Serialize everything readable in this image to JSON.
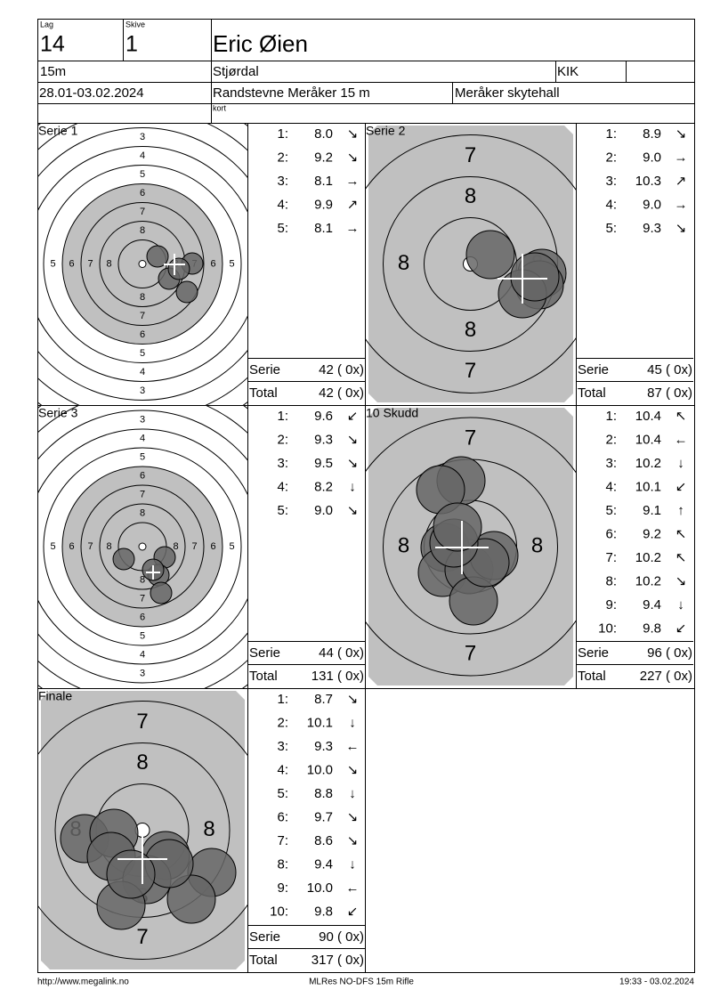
{
  "header": {
    "lag_label": "Lag",
    "lag": "14",
    "skive_label": "Skive",
    "skive": "1",
    "name": "Eric Øien",
    "distance": "15m",
    "club": "Stjørdal",
    "club_short": "KIK",
    "dates": "28.01-03.02.2024",
    "event": "Randstevne Meråker 15 m",
    "venue": "Meråker skytehall",
    "note": "kort"
  },
  "panels": [
    {
      "title": "Serie 1",
      "target": "full",
      "ring_labels": {
        "vertical": [
          3,
          4,
          5,
          6,
          7,
          8
        ],
        "horizontal": [
          5,
          6,
          7,
          8
        ]
      },
      "shots": [
        {
          "n": "1:",
          "value": "8.0",
          "arrow": "↘"
        },
        {
          "n": "2:",
          "value": "9.2",
          "arrow": "↘"
        },
        {
          "n": "3:",
          "value": "8.1",
          "arrow": "→"
        },
        {
          "n": "4:",
          "value": "9.9",
          "arrow": "↗"
        },
        {
          "n": "5:",
          "value": "8.1",
          "arrow": "→"
        }
      ],
      "serie_label": "Serie",
      "serie": "42 ( 0x)",
      "total_label": "Total",
      "total": "42 ( 0x)"
    },
    {
      "title": "Serie 2",
      "target": "zoom",
      "ring_labels": {
        "vertical": [
          7,
          8
        ],
        "horizontal": [
          8
        ]
      },
      "shots": [
        {
          "n": "1:",
          "value": "8.9",
          "arrow": "↘"
        },
        {
          "n": "2:",
          "value": "9.0",
          "arrow": "→"
        },
        {
          "n": "3:",
          "value": "10.3",
          "arrow": "↗"
        },
        {
          "n": "4:",
          "value": "9.0",
          "arrow": "→"
        },
        {
          "n": "5:",
          "value": "9.3",
          "arrow": "↘"
        }
      ],
      "serie_label": "Serie",
      "serie": "45 ( 0x)",
      "total_label": "Total",
      "total": "87 ( 0x)"
    },
    {
      "title": "Serie 3",
      "target": "full",
      "ring_labels": {
        "vertical": [
          3,
          4,
          5,
          6,
          7,
          8
        ],
        "horizontal": [
          5,
          6,
          7,
          8
        ]
      },
      "shots": [
        {
          "n": "1:",
          "value": "9.6",
          "arrow": "↙"
        },
        {
          "n": "2:",
          "value": "9.3",
          "arrow": "↘"
        },
        {
          "n": "3:",
          "value": "9.5",
          "arrow": "↘"
        },
        {
          "n": "4:",
          "value": "8.2",
          "arrow": "↓"
        },
        {
          "n": "5:",
          "value": "9.0",
          "arrow": "↘"
        }
      ],
      "serie_label": "Serie",
      "serie": "44 ( 0x)",
      "total_label": "Total",
      "total": "131 ( 0x)"
    },
    {
      "title": "10 Skudd",
      "target": "zoom",
      "ring_labels": {
        "vertical": [
          7
        ],
        "horizontal": [
          8
        ]
      },
      "shots": [
        {
          "n": "1:",
          "value": "10.4",
          "arrow": "↖"
        },
        {
          "n": "2:",
          "value": "10.4",
          "arrow": "←"
        },
        {
          "n": "3:",
          "value": "10.2",
          "arrow": "↓"
        },
        {
          "n": "4:",
          "value": "10.1",
          "arrow": "↙"
        },
        {
          "n": "5:",
          "value": "9.1",
          "arrow": "↑"
        },
        {
          "n": "6:",
          "value": "9.2",
          "arrow": "↖"
        },
        {
          "n": "7:",
          "value": "10.2",
          "arrow": "↖"
        },
        {
          "n": "8:",
          "value": "10.2",
          "arrow": "↘"
        },
        {
          "n": "9:",
          "value": "9.4",
          "arrow": "↓"
        },
        {
          "n": "10:",
          "value": "9.8",
          "arrow": "↙"
        }
      ],
      "serie_label": "Serie",
      "serie": "96 ( 0x)",
      "total_label": "Total",
      "total": "227 ( 0x)"
    },
    {
      "title": "Finale",
      "target": "zoom",
      "ring_labels": {
        "vertical": [
          7,
          8
        ],
        "horizontal": [
          8
        ]
      },
      "shots": [
        {
          "n": "1:",
          "value": "8.7",
          "arrow": "↘"
        },
        {
          "n": "2:",
          "value": "10.1",
          "arrow": "↓"
        },
        {
          "n": "3:",
          "value": "9.3",
          "arrow": "←"
        },
        {
          "n": "4:",
          "value": "10.0",
          "arrow": "↘"
        },
        {
          "n": "5:",
          "value": "8.8",
          "arrow": "↓"
        },
        {
          "n": "6:",
          "value": "9.7",
          "arrow": "↘"
        },
        {
          "n": "7:",
          "value": "8.6",
          "arrow": "↘"
        },
        {
          "n": "8:",
          "value": "9.4",
          "arrow": "↓"
        },
        {
          "n": "9:",
          "value": "10.0",
          "arrow": "←"
        },
        {
          "n": "10:",
          "value": "9.8",
          "arrow": "↙"
        }
      ],
      "serie_label": "Serie",
      "serie": "90 ( 0x)",
      "total_label": "Total",
      "total": "317 ( 0x)"
    }
  ],
  "footer": {
    "url": "http://www.megalink.no",
    "software": "MLRes NO-DFS 15m Rifle",
    "timestamp": "19:33 - 03.02.2024"
  }
}
